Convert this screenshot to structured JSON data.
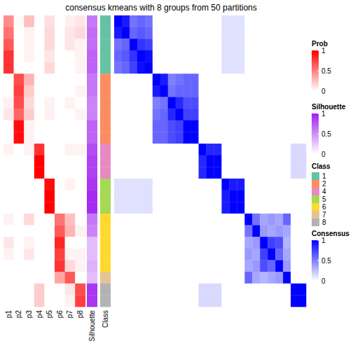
{
  "chart_data": {
    "type": "heatmap",
    "title": "consensus kmeans with 8 groups from 50 partitions",
    "columns": [
      "p1",
      "p2",
      "p3",
      "p4",
      "p5",
      "p6",
      "p7",
      "p8"
    ],
    "annotation_labels": [
      "Silhouette",
      "Class"
    ],
    "membership": [
      [
        0.45,
        0.02,
        0.25,
        0,
        0.12,
        0,
        0.06,
        0.1
      ],
      [
        0.55,
        0,
        0.05,
        0,
        0.15,
        0,
        0.1,
        0.15
      ],
      [
        0.65,
        0,
        0.05,
        0,
        0.15,
        0,
        0.1,
        0.05
      ],
      [
        0.8,
        0,
        0.05,
        0,
        0.1,
        0,
        0,
        0.05
      ],
      [
        0.8,
        0,
        0,
        0,
        0.15,
        0,
        0,
        0.05
      ],
      [
        0,
        0.7,
        0.3,
        0,
        0,
        0,
        0,
        0
      ],
      [
        0,
        0.75,
        0.2,
        0,
        0,
        0,
        0,
        0.05
      ],
      [
        0.05,
        0.7,
        0.15,
        0,
        0.05,
        0,
        0.05,
        0
      ],
      [
        0.1,
        0.6,
        0.2,
        0,
        0.05,
        0,
        0,
        0.05
      ],
      [
        0,
        0.95,
        0.05,
        0,
        0,
        0,
        0,
        0
      ],
      [
        0,
        0.95,
        0.05,
        0,
        0,
        0,
        0,
        0
      ],
      [
        0.05,
        0,
        0.05,
        0.8,
        0,
        0,
        0.05,
        0.05
      ],
      [
        0,
        0,
        0,
        1,
        0,
        0,
        0,
        0
      ],
      [
        0,
        0,
        0,
        1,
        0,
        0,
        0,
        0
      ],
      [
        0,
        0,
        0,
        0,
        0.95,
        0,
        0.05,
        0
      ],
      [
        0,
        0,
        0,
        0,
        1,
        0,
        0,
        0
      ],
      [
        0,
        0,
        0,
        0,
        1,
        0,
        0,
        0
      ],
      [
        0.05,
        0,
        0.15,
        0,
        0,
        0.55,
        0.25,
        0
      ],
      [
        0,
        0,
        0,
        0,
        0,
        0.65,
        0.3,
        0.05
      ],
      [
        0.1,
        0,
        0.05,
        0,
        0,
        0.85,
        0,
        0
      ],
      [
        0.05,
        0,
        0.1,
        0,
        0,
        0.75,
        0.05,
        0.05
      ],
      [
        0,
        0,
        0,
        0,
        0,
        0.8,
        0.15,
        0.05
      ],
      [
        0,
        0,
        0,
        0,
        0,
        0.35,
        0.65,
        0
      ],
      [
        0,
        0,
        0,
        0.2,
        0,
        0,
        0.1,
        0.7
      ],
      [
        0,
        0,
        0,
        0.2,
        0,
        0,
        0.05,
        0.75
      ]
    ],
    "silhouette": [
      0.6,
      0.65,
      0.65,
      0.7,
      0.7,
      0.6,
      0.6,
      0.55,
      0.55,
      0.7,
      0.7,
      0.8,
      0.85,
      0.85,
      0.9,
      0.95,
      0.95,
      0.6,
      0.55,
      0.3,
      0.3,
      0.35,
      0.3,
      0.9,
      0.9
    ],
    "class": [
      1,
      1,
      1,
      1,
      1,
      2,
      2,
      2,
      2,
      2,
      2,
      4,
      4,
      4,
      5,
      5,
      5,
      6,
      6,
      6,
      6,
      6,
      7,
      8,
      8
    ],
    "consensus": [
      [
        1,
        0.9,
        0.55,
        0.6,
        0.55,
        0,
        0,
        0,
        0,
        0,
        0,
        0,
        0,
        0,
        0.12,
        0.12,
        0.12,
        0,
        0,
        0,
        0,
        0,
        0,
        0,
        0
      ],
      [
        0.9,
        1,
        0.6,
        0.65,
        0.6,
        0,
        0,
        0,
        0,
        0,
        0,
        0,
        0,
        0,
        0.12,
        0.12,
        0.12,
        0,
        0,
        0,
        0,
        0,
        0,
        0,
        0
      ],
      [
        0.55,
        0.6,
        1,
        0.8,
        0.75,
        0,
        0,
        0,
        0,
        0,
        0,
        0,
        0,
        0,
        0.12,
        0.12,
        0.12,
        0,
        0,
        0,
        0,
        0,
        0,
        0,
        0
      ],
      [
        0.6,
        0.65,
        0.8,
        1,
        0.95,
        0,
        0,
        0,
        0,
        0,
        0,
        0,
        0,
        0,
        0.12,
        0.12,
        0.12,
        0,
        0,
        0,
        0,
        0,
        0,
        0,
        0
      ],
      [
        0.55,
        0.6,
        0.75,
        0.95,
        1,
        0,
        0,
        0,
        0,
        0,
        0,
        0,
        0,
        0,
        0.12,
        0.12,
        0.12,
        0,
        0,
        0,
        0,
        0,
        0,
        0,
        0
      ],
      [
        0,
        0,
        0,
        0,
        0,
        1,
        0.9,
        0.5,
        0.55,
        0.6,
        0.6,
        0,
        0,
        0,
        0,
        0,
        0,
        0,
        0,
        0,
        0,
        0,
        0,
        0,
        0
      ],
      [
        0,
        0,
        0,
        0,
        0,
        0.9,
        1,
        0.55,
        0.6,
        0.6,
        0.6,
        0,
        0,
        0,
        0,
        0,
        0,
        0,
        0,
        0,
        0,
        0,
        0,
        0,
        0
      ],
      [
        0,
        0,
        0,
        0,
        0,
        0.5,
        0.55,
        1,
        0.85,
        0.7,
        0.7,
        0,
        0,
        0,
        0,
        0,
        0,
        0,
        0,
        0,
        0,
        0,
        0,
        0,
        0
      ],
      [
        0,
        0,
        0,
        0,
        0,
        0.55,
        0.6,
        0.85,
        1,
        0.75,
        0.75,
        0,
        0,
        0,
        0,
        0,
        0,
        0,
        0,
        0,
        0,
        0,
        0,
        0,
        0
      ],
      [
        0,
        0,
        0,
        0,
        0,
        0.6,
        0.6,
        0.7,
        0.75,
        1,
        1,
        0,
        0,
        0,
        0,
        0,
        0,
        0,
        0,
        0,
        0,
        0,
        0,
        0,
        0
      ],
      [
        0,
        0,
        0,
        0,
        0,
        0.6,
        0.6,
        0.7,
        0.75,
        1,
        1,
        0,
        0,
        0,
        0,
        0,
        0,
        0,
        0,
        0,
        0,
        0,
        0,
        0,
        0
      ],
      [
        0,
        0,
        0,
        0,
        0,
        0,
        0,
        0,
        0,
        0,
        0,
        1,
        0.85,
        0.85,
        0,
        0,
        0,
        0,
        0,
        0,
        0,
        0,
        0,
        0.15,
        0.15
      ],
      [
        0,
        0,
        0,
        0,
        0,
        0,
        0,
        0,
        0,
        0,
        0,
        0.85,
        1,
        1,
        0,
        0,
        0,
        0,
        0,
        0,
        0,
        0,
        0,
        0.15,
        0.15
      ],
      [
        0,
        0,
        0,
        0,
        0,
        0,
        0,
        0,
        0,
        0,
        0,
        0.85,
        1,
        1,
        0,
        0,
        0,
        0,
        0,
        0,
        0,
        0,
        0,
        0.15,
        0.15
      ],
      [
        0.12,
        0.12,
        0.12,
        0.12,
        0.12,
        0,
        0,
        0,
        0,
        0,
        0,
        0,
        0,
        0,
        1,
        0.9,
        0.9,
        0,
        0,
        0,
        0,
        0,
        0,
        0,
        0
      ],
      [
        0.12,
        0.12,
        0.12,
        0.12,
        0.12,
        0,
        0,
        0,
        0,
        0,
        0,
        0,
        0,
        0,
        0.9,
        1,
        1,
        0,
        0,
        0,
        0,
        0,
        0,
        0,
        0
      ],
      [
        0.12,
        0.12,
        0.12,
        0.12,
        0.12,
        0,
        0,
        0,
        0,
        0,
        0,
        0,
        0,
        0,
        0.9,
        1,
        1,
        0,
        0,
        0,
        0,
        0,
        0,
        0,
        0
      ],
      [
        0,
        0,
        0,
        0,
        0,
        0,
        0,
        0,
        0,
        0,
        0,
        0,
        0,
        0,
        0,
        0,
        0,
        1,
        0.55,
        0.35,
        0.4,
        0.35,
        0.6,
        0,
        0
      ],
      [
        0,
        0,
        0,
        0,
        0,
        0,
        0,
        0,
        0,
        0,
        0,
        0,
        0,
        0,
        0,
        0,
        0,
        0.55,
        1,
        0.4,
        0.35,
        0.4,
        0.35,
        0,
        0
      ],
      [
        0,
        0,
        0,
        0,
        0,
        0,
        0,
        0,
        0,
        0,
        0,
        0,
        0,
        0,
        0,
        0,
        0,
        0.35,
        0.4,
        1,
        0.75,
        0.7,
        0.3,
        0,
        0
      ],
      [
        0,
        0,
        0,
        0,
        0,
        0,
        0,
        0,
        0,
        0,
        0,
        0,
        0,
        0,
        0,
        0,
        0,
        0.4,
        0.35,
        0.75,
        1,
        0.6,
        0.35,
        0,
        0
      ],
      [
        0,
        0,
        0,
        0,
        0,
        0,
        0,
        0,
        0,
        0,
        0,
        0,
        0,
        0,
        0,
        0,
        0,
        0.35,
        0.4,
        0.7,
        0.6,
        1,
        0.4,
        0,
        0
      ],
      [
        0,
        0,
        0,
        0,
        0,
        0,
        0,
        0,
        0,
        0,
        0,
        0,
        0,
        0,
        0,
        0,
        0,
        0.6,
        0.35,
        0.3,
        0.35,
        0.4,
        1,
        0,
        0
      ],
      [
        0,
        0,
        0,
        0,
        0,
        0,
        0,
        0,
        0,
        0,
        0,
        0.15,
        0.15,
        0.15,
        0,
        0,
        0,
        0,
        0,
        0,
        0,
        0,
        0,
        1,
        1
      ],
      [
        0,
        0,
        0,
        0,
        0,
        0,
        0,
        0,
        0,
        0,
        0,
        0.15,
        0.15,
        0.15,
        0,
        0,
        0,
        0,
        0,
        0,
        0,
        0,
        0,
        1,
        1
      ]
    ],
    "prob_scale": {
      "title": "Prob",
      "color": "#ff0000",
      "range": [
        0,
        1
      ],
      "ticks": [
        0,
        0.5,
        1
      ]
    },
    "silhouette_scale": {
      "title": "Silhouette",
      "color": "#a020f0",
      "range": [
        0,
        1
      ],
      "ticks": [
        0,
        0.5,
        1
      ]
    },
    "class_legend": {
      "title": "Class",
      "levels": [
        1,
        2,
        4,
        5,
        6,
        7,
        8
      ],
      "colors": [
        "#66c2a5",
        "#fc8d62",
        "#e78ac3",
        "#a6d854",
        "#ffd92f",
        "#e5c494",
        "#b3b3b3"
      ]
    },
    "consensus_scale": {
      "title": "Consensus",
      "color": "#0000ff",
      "range": [
        0,
        1
      ],
      "ticks": [
        0,
        0.5,
        1
      ]
    }
  }
}
